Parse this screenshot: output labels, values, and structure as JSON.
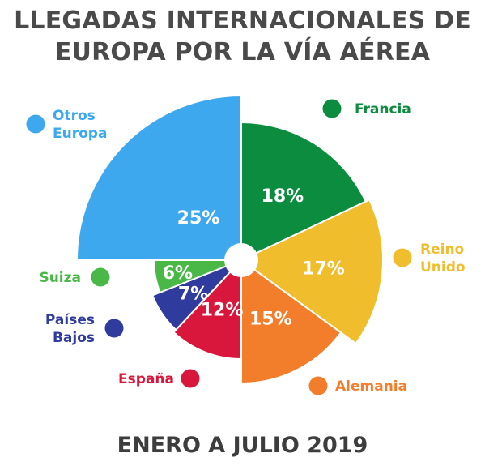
{
  "title_line1": "LLEGADAS INTERNACIONALES DE",
  "title_line2": "EUROPA POR LA VÍA AÉREA",
  "subtitle": "ENERO A JULIO 2019",
  "chart_data": {
    "type": "pie",
    "title": "LLEGADAS INTERNACIONALES DE EUROPA POR LA VÍA AÉREA",
    "subtitle": "ENERO A JULIO 2019",
    "unit": "%",
    "slices": [
      {
        "name": "Francia",
        "lines": [
          "Francia"
        ],
        "value": 18,
        "label": "18%",
        "color": "#0b8c3e"
      },
      {
        "name": "Reino Unido",
        "lines": [
          "Reino",
          "Unido"
        ],
        "value": 17,
        "label": "17%",
        "color": "#f0be2d"
      },
      {
        "name": "Alemania",
        "lines": [
          "Alemania"
        ],
        "value": 15,
        "label": "15%",
        "color": "#f27d2b"
      },
      {
        "name": "España",
        "lines": [
          "España"
        ],
        "value": 12,
        "label": "12%",
        "color": "#d9163b"
      },
      {
        "name": "Países Bajos",
        "lines": [
          "Países",
          "Bajos"
        ],
        "value": 7,
        "label": "7%",
        "color": "#2f3c9e"
      },
      {
        "name": "Suiza",
        "lines": [
          "Suiza"
        ],
        "value": 6,
        "label": "6%",
        "color": "#49b847"
      },
      {
        "name": "Otros Europa",
        "lines": [
          "Otros",
          "Europa"
        ],
        "value": 25,
        "label": "25%",
        "color": "#3ea8ef"
      }
    ]
  }
}
